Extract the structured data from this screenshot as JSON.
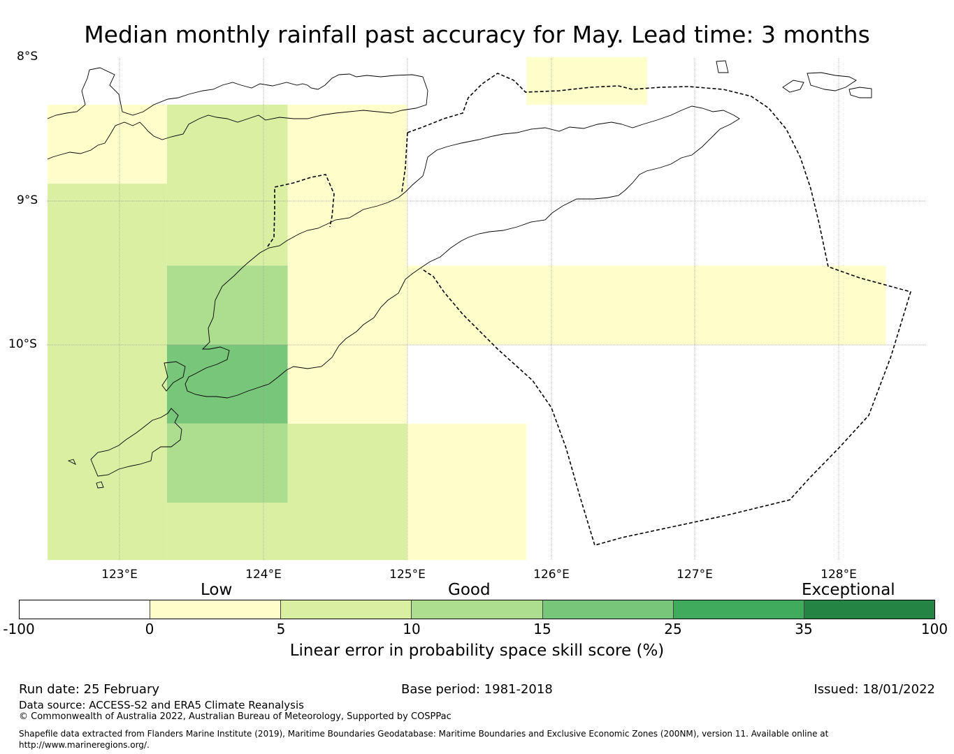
{
  "title": "Median monthly rainfall past accuracy for May. Lead time: 3 months",
  "map": {
    "lat_labels": [
      "8°S",
      "9°S",
      "10°S"
    ],
    "lon_labels": [
      "123°E",
      "124°E",
      "125°E",
      "126°E",
      "127°E",
      "128°E"
    ],
    "extent": {
      "lon": [
        122.5,
        128.6
      ],
      "lat": [
        -11.5,
        -8.0
      ]
    },
    "skill_cells": [
      {
        "lon": [
          122.5,
          123.33
        ],
        "lat": [
          -8.33,
          -8.88
        ],
        "category": "0-5"
      },
      {
        "lon": [
          123.33,
          124.17
        ],
        "lat": [
          -8.33,
          -9.45
        ],
        "category": "5-10"
      },
      {
        "lon": [
          124.17,
          125.0
        ],
        "lat": [
          -8.33,
          -9.45
        ],
        "category": "0-5"
      },
      {
        "lon": [
          122.5,
          123.33
        ],
        "lat": [
          -8.88,
          -11.5
        ],
        "category": "5-10"
      },
      {
        "lon": [
          123.33,
          124.17
        ],
        "lat": [
          -9.45,
          -10.0
        ],
        "category": "10-15"
      },
      {
        "lon": [
          123.33,
          124.17
        ],
        "lat": [
          -10.0,
          -10.55
        ],
        "category": "15-25"
      },
      {
        "lon": [
          123.33,
          124.17
        ],
        "lat": [
          -10.55,
          -11.1
        ],
        "category": "10-15"
      },
      {
        "lon": [
          123.33,
          125.0
        ],
        "lat": [
          -11.1,
          -11.5
        ],
        "category": "5-10"
      },
      {
        "lon": [
          124.17,
          125.0
        ],
        "lat": [
          -10.55,
          -11.1
        ],
        "category": "5-10"
      },
      {
        "lon": [
          124.17,
          125.0
        ],
        "lat": [
          -9.45,
          -10.55
        ],
        "category": "0-5"
      },
      {
        "lon": [
          125.0,
          125.83
        ],
        "lat": [
          -10.55,
          -11.5
        ],
        "category": "0-5"
      },
      {
        "lon": [
          125.0,
          128.33
        ],
        "lat": [
          -9.45,
          -10.0
        ],
        "category": "0-5"
      },
      {
        "lon": [
          125.83,
          126.67
        ],
        "lat": [
          -8.0,
          -8.33
        ],
        "category": "0-5"
      }
    ]
  },
  "legend": {
    "bands": [
      "Low",
      "Good",
      "Exceptional"
    ],
    "ticks": [
      "-100",
      "0",
      "5",
      "10",
      "15",
      "25",
      "35",
      "100"
    ],
    "colors": [
      "#ffffff",
      "#ffffcc",
      "#d9f0a3",
      "#addd8e",
      "#78c679",
      "#41ab5d",
      "#238443"
    ],
    "category_colors": {
      "0-5": "#ffffcc",
      "5-10": "#d9f0a3",
      "10-15": "#addd8e",
      "15-25": "#78c679"
    },
    "label": "Linear error in probability space skill score (%)"
  },
  "footer": {
    "run_date": "Run date: 25 February",
    "base_period": "Base period: 1981-2018",
    "issued": "Issued: 18/01/2022",
    "data_source": "Data source: ACCESS-S2 and ERA5 Climate Reanalysis",
    "copyright": "© Commonwealth of Australia 2022, Australian Bureau of Meteorology, Supported by COSPPac",
    "shapefile": "Shapefile data extracted from Flanders Marine Institute (2019), Maritime Boundaries Geodatabase: Maritime Boundaries and Exclusive Economic Zones (200NM), version 11. Available online at http://www.marineregions.org/."
  }
}
